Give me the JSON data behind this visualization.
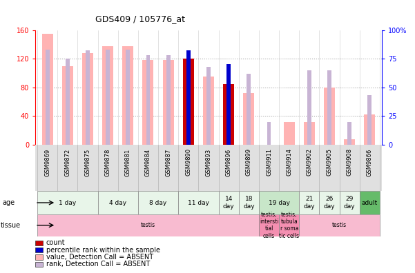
{
  "title": "GDS409 / 105776_at",
  "samples": [
    "GSM9869",
    "GSM9872",
    "GSM9875",
    "GSM9878",
    "GSM9881",
    "GSM9884",
    "GSM9887",
    "GSM9890",
    "GSM9893",
    "GSM9896",
    "GSM9899",
    "GSM9911",
    "GSM9914",
    "GSM9902",
    "GSM9905",
    "GSM9908",
    "GSM9866"
  ],
  "value_bars": [
    155,
    110,
    128,
    137,
    137,
    118,
    118,
    120,
    95,
    85,
    72,
    0,
    32,
    32,
    80,
    8,
    42
  ],
  "rank_bars": [
    83,
    75,
    82,
    83,
    83,
    78,
    78,
    82,
    68,
    63,
    62,
    20,
    0,
    65,
    65,
    20,
    43
  ],
  "count_bars": [
    0,
    0,
    0,
    0,
    0,
    0,
    0,
    120,
    0,
    85,
    0,
    0,
    0,
    0,
    0,
    0,
    0
  ],
  "count_rank_bars": [
    0,
    0,
    0,
    0,
    0,
    0,
    0,
    82,
    0,
    70,
    0,
    0,
    0,
    0,
    0,
    0,
    0
  ],
  "age_groups": [
    {
      "label": "1 day",
      "start": 0,
      "end": 3,
      "color": "#e8f5e9"
    },
    {
      "label": "4 day",
      "start": 3,
      "end": 5,
      "color": "#e8f5e9"
    },
    {
      "label": "8 day",
      "start": 5,
      "end": 7,
      "color": "#e8f5e9"
    },
    {
      "label": "11 day",
      "start": 7,
      "end": 9,
      "color": "#e8f5e9"
    },
    {
      "label": "14\nday",
      "start": 9,
      "end": 10,
      "color": "#e8f5e9"
    },
    {
      "label": "18\nday",
      "start": 10,
      "end": 11,
      "color": "#e8f5e9"
    },
    {
      "label": "19 day",
      "start": 11,
      "end": 13,
      "color": "#c8e6c9"
    },
    {
      "label": "21\nday",
      "start": 13,
      "end": 14,
      "color": "#e8f5e9"
    },
    {
      "label": "26\nday",
      "start": 14,
      "end": 15,
      "color": "#e8f5e9"
    },
    {
      "label": "29\nday",
      "start": 15,
      "end": 16,
      "color": "#e8f5e9"
    },
    {
      "label": "adult",
      "start": 16,
      "end": 17,
      "color": "#66bb6a"
    }
  ],
  "tissue_groups": [
    {
      "label": "testis",
      "start": 0,
      "end": 11,
      "color": "#f8bbd0"
    },
    {
      "label": "testis,\nintersti\ntial\ncells",
      "start": 11,
      "end": 12,
      "color": "#f48fb1"
    },
    {
      "label": "testis,\ntubula\nr soma\ntic cells",
      "start": 12,
      "end": 13,
      "color": "#f48fb1"
    },
    {
      "label": "testis",
      "start": 13,
      "end": 17,
      "color": "#f8bbd0"
    }
  ],
  "ylim_left": [
    0,
    160
  ],
  "ylim_right": [
    0,
    100
  ],
  "yticks_left": [
    0,
    40,
    80,
    120,
    160
  ],
  "yticks_right": [
    0,
    25,
    50,
    75,
    100
  ],
  "value_bar_color": "#ffb3b3",
  "rank_bar_color": "#c8b4d4",
  "count_bar_color": "#cc0000",
  "count_rank_color": "#0000cc",
  "bg_color": "#ffffff",
  "legend_items": [
    {
      "color": "#cc0000",
      "label": "count"
    },
    {
      "color": "#0000cc",
      "label": "percentile rank within the sample"
    },
    {
      "color": "#ffb3b3",
      "label": "value, Detection Call = ABSENT"
    },
    {
      "color": "#c8b4d4",
      "label": "rank, Detection Call = ABSENT"
    }
  ]
}
